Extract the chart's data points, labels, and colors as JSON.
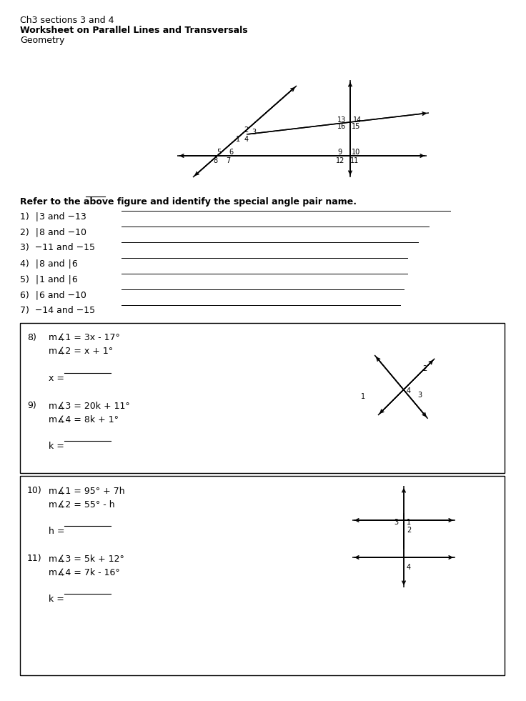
{
  "title_lines": [
    "Ch3 sections 3 and 4",
    "Worksheet on Parallel Lines and Transversals",
    "Geometry"
  ],
  "bold_instruction": "Refer to the above figure and identify the special angle pair name.",
  "angle_questions": [
    "1)  ∣3 and −13",
    "2)  ∣8 and −10",
    "3)  −11 and −15",
    "4)  ∣8 and ∣6",
    "5)  ∣1 and ∣6",
    "6)  ∣6 and −10",
    "7)  −14 and −15"
  ],
  "box1_lines": [
    [
      "8)",
      "m∡1 = 3x - 17°"
    ],
    [
      "",
      "m∡2 = x + 1°"
    ],
    [
      "",
      ""
    ],
    [
      "",
      "x = "
    ],
    [
      "",
      ""
    ],
    [
      "9)",
      "m∡3 = 20k + 11°"
    ],
    [
      "",
      "m∡4 = 8k + 1°"
    ],
    [
      "",
      ""
    ],
    [
      "",
      "k = "
    ]
  ],
  "box2_lines": [
    [
      "10)",
      "m∡1 = 95° + 7h"
    ],
    [
      "",
      "m∡2 = 55° - h"
    ],
    [
      "",
      ""
    ],
    [
      "",
      "h = "
    ],
    [
      "",
      ""
    ],
    [
      "11)",
      "m∡3 = 5k + 12°"
    ],
    [
      "",
      "m∡4 = 7k - 16°"
    ],
    [
      "",
      ""
    ],
    [
      "",
      "k = "
    ]
  ],
  "bg_color": "#ffffff",
  "text_color": "#000000",
  "fontsize_title": 9,
  "fontsize_body": 9,
  "fontsize_diag": 7
}
